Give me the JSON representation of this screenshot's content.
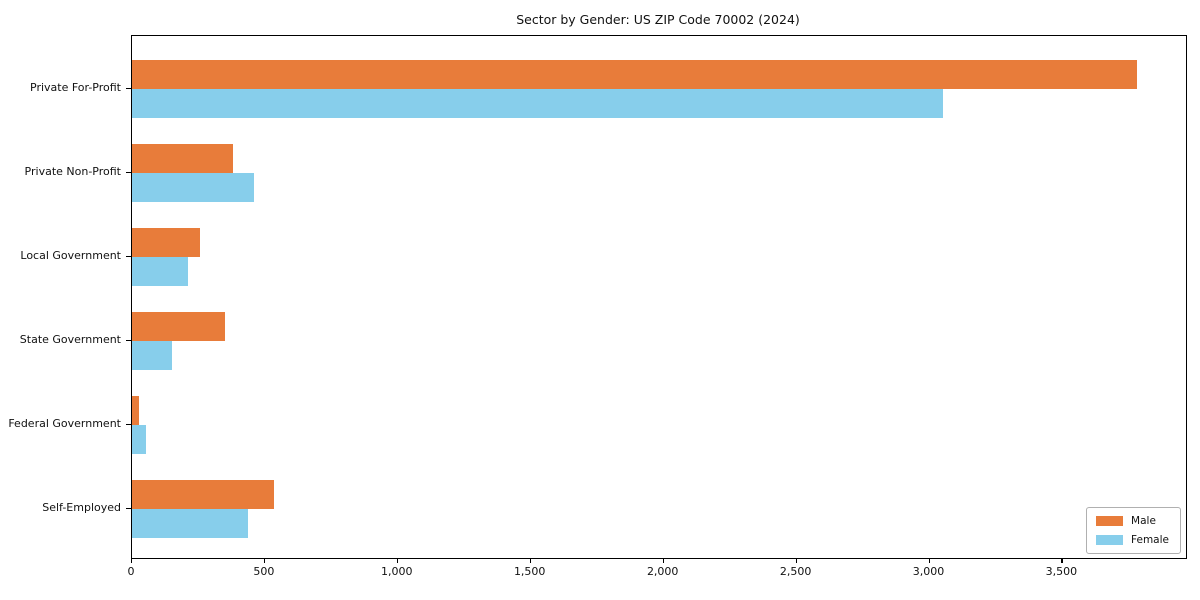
{
  "title": "Sector by Gender: US ZIP Code 70002 (2024)",
  "legend": {
    "male_label": "Male",
    "female_label": "Female",
    "position": "lower right"
  },
  "colors": {
    "male": "#e87c3a",
    "female": "#87ceeb",
    "frame": "#000000",
    "legend_border": "#b0b0b0"
  },
  "chart_data": {
    "type": "bar",
    "orientation": "horizontal",
    "title": "Sector by Gender: US ZIP Code 70002 (2024)",
    "categories": [
      "Private For-Profit",
      "Private Non-Profit",
      "Local Government",
      "State Government",
      "Federal Government",
      "Self-Employed"
    ],
    "series": [
      {
        "name": "Male",
        "color": "#e87c3a",
        "values": [
          3780,
          380,
          255,
          350,
          25,
          535
        ]
      },
      {
        "name": "Female",
        "color": "#87ceeb",
        "values": [
          3050,
          460,
          212,
          150,
          52,
          435
        ]
      }
    ],
    "xlabel": "",
    "ylabel": "",
    "xlim": [
      0,
      3965
    ],
    "xticks": [
      0,
      500,
      1000,
      1500,
      2000,
      2500,
      3000,
      3500
    ],
    "xtick_labels": [
      "0",
      "500",
      "1,000",
      "1,500",
      "2,000",
      "2,500",
      "3,000",
      "3,500"
    ],
    "grid": false,
    "legend_position": "lower right",
    "legend_entries": [
      "Male",
      "Female"
    ]
  }
}
